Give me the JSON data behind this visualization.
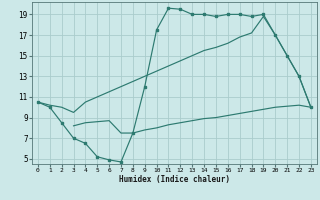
{
  "xlabel": "Humidex (Indice chaleur)",
  "bg_color": "#cce8e8",
  "grid_color": "#aacccc",
  "line_color": "#2d7a70",
  "xlim": [
    -0.5,
    23.5
  ],
  "ylim": [
    4.5,
    20.2
  ],
  "xticks": [
    0,
    1,
    2,
    3,
    4,
    5,
    6,
    7,
    8,
    9,
    10,
    11,
    12,
    13,
    14,
    15,
    16,
    17,
    18,
    19,
    20,
    21,
    22,
    23
  ],
  "yticks": [
    5,
    7,
    9,
    11,
    13,
    15,
    17,
    19
  ],
  "line1_x": [
    0,
    1,
    2,
    3,
    4,
    5,
    6,
    7,
    8,
    9,
    10,
    11,
    12,
    13,
    14,
    15,
    16,
    17,
    18,
    19,
    20,
    21,
    22,
    23
  ],
  "line1_y": [
    10.5,
    10.0,
    8.5,
    7.0,
    6.5,
    5.2,
    4.9,
    4.7,
    7.5,
    12.0,
    17.5,
    19.6,
    19.5,
    19.0,
    19.0,
    18.8,
    19.0,
    19.0,
    18.8,
    19.0,
    17.0,
    15.0,
    13.0,
    10.0
  ],
  "line2_x": [
    0,
    1,
    2,
    3,
    4,
    5,
    6,
    7,
    8,
    9,
    10,
    11,
    12,
    13,
    14,
    15,
    16,
    17,
    18,
    19,
    20,
    21,
    22,
    23
  ],
  "line2_y": [
    10.5,
    10.2,
    10.0,
    9.5,
    10.5,
    11.0,
    11.5,
    12.0,
    12.5,
    13.0,
    13.5,
    14.0,
    14.5,
    15.0,
    15.5,
    15.8,
    16.2,
    16.8,
    17.2,
    18.8,
    17.0,
    15.0,
    13.0,
    10.0
  ],
  "line3_x": [
    3,
    4,
    5,
    6,
    7,
    8,
    9,
    10,
    11,
    12,
    13,
    14,
    15,
    16,
    17,
    18,
    19,
    20,
    21,
    22,
    23
  ],
  "line3_y": [
    8.2,
    8.5,
    8.6,
    8.7,
    7.5,
    7.5,
    7.8,
    8.0,
    8.3,
    8.5,
    8.7,
    8.9,
    9.0,
    9.2,
    9.4,
    9.6,
    9.8,
    10.0,
    10.1,
    10.2,
    10.0
  ]
}
